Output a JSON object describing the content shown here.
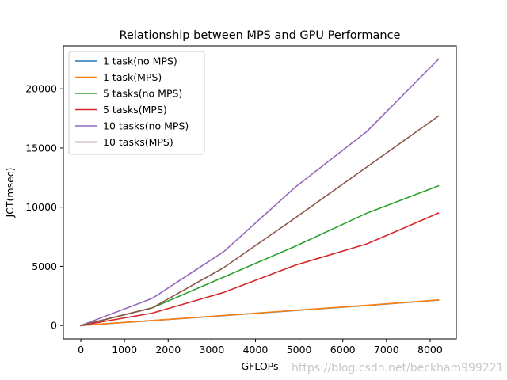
{
  "chart_data": {
    "type": "line",
    "title": "Relationship between MPS and GPU Performance",
    "xlabel": "GFLOPs",
    "ylabel": "JCT(msec)",
    "xlim": [
      -400,
      8600
    ],
    "ylim": [
      -1125,
      23625
    ],
    "xticks": [
      0,
      1000,
      2000,
      3000,
      4000,
      5000,
      6000,
      7000,
      8000
    ],
    "yticks": [
      0,
      5000,
      10000,
      15000,
      20000
    ],
    "x": [
      0,
      1638,
      3277,
      4915,
      6554,
      8192
    ],
    "legend_position": "upper-left",
    "series": [
      {
        "name": "1 task(no MPS)",
        "color": "#1f77b4",
        "values": [
          0,
          420,
          840,
          1270,
          1700,
          2150
        ]
      },
      {
        "name": "1 task(MPS)",
        "color": "#ff7f0e",
        "values": [
          0,
          430,
          850,
          1280,
          1710,
          2160
        ]
      },
      {
        "name": "5 tasks(no MPS)",
        "color": "#2ca02c",
        "values": [
          0,
          1500,
          4100,
          6700,
          9500,
          11800
        ]
      },
      {
        "name": "5 tasks(MPS)",
        "color": "#d62728",
        "values": [
          0,
          1050,
          2800,
          5100,
          6900,
          9500
        ]
      },
      {
        "name": "10 tasks(no MPS)",
        "color": "#9467bd",
        "values": [
          0,
          2300,
          6250,
          11700,
          16400,
          22500
        ]
      },
      {
        "name": "10 tasks(MPS)",
        "color": "#8c564b",
        "values": [
          0,
          1500,
          4900,
          9100,
          13400,
          17700
        ]
      }
    ]
  },
  "watermark": "https://blog.csdn.net/beckham999221"
}
